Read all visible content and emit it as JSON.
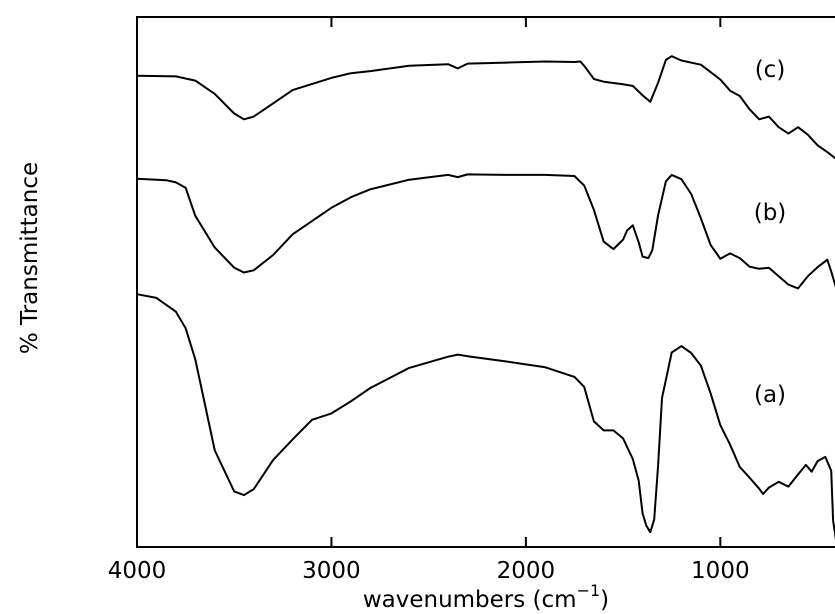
{
  "chart_data": {
    "type": "line",
    "xlabel": "wavenumbers (cm",
    "xlabel_superscript": "−1",
    "xlabel_close": ")",
    "ylabel": "% Transmittance",
    "xlim": [
      4000,
      400
    ],
    "x_reversed": true,
    "y_ticks_shown": false,
    "x_ticks": [
      {
        "value": 4000,
        "label": "4000"
      },
      {
        "value": 3000,
        "label": "3000"
      },
      {
        "value": 2000,
        "label": "2000"
      },
      {
        "value": 1000,
        "label": "1000"
      }
    ],
    "ylim": [
      0,
      1
    ],
    "grid": false,
    "series": [
      {
        "name": "(c)",
        "x": [
          4000,
          3800,
          3700,
          3600,
          3500,
          3450,
          3400,
          3300,
          3200,
          3000,
          2900,
          2800,
          2600,
          2400,
          2350,
          2300,
          2100,
          1900,
          1750,
          1720,
          1700,
          1650,
          1600,
          1500,
          1450,
          1400,
          1360,
          1320,
          1280,
          1250,
          1200,
          1100,
          1000,
          950,
          900,
          850,
          800,
          750,
          700,
          650,
          600,
          550,
          500,
          450,
          400
        ],
        "y": [
          0.889,
          0.888,
          0.88,
          0.855,
          0.818,
          0.807,
          0.812,
          0.837,
          0.862,
          0.885,
          0.894,
          0.898,
          0.908,
          0.911,
          0.903,
          0.912,
          0.914,
          0.916,
          0.915,
          0.916,
          0.908,
          0.883,
          0.878,
          0.873,
          0.87,
          0.852,
          0.84,
          0.876,
          0.919,
          0.926,
          0.918,
          0.91,
          0.882,
          0.861,
          0.851,
          0.826,
          0.807,
          0.812,
          0.792,
          0.78,
          0.792,
          0.778,
          0.758,
          0.745,
          0.731
        ]
      },
      {
        "name": "(b)",
        "x": [
          4000,
          3850,
          3800,
          3750,
          3700,
          3600,
          3500,
          3450,
          3400,
          3300,
          3200,
          3000,
          2900,
          2800,
          2600,
          2400,
          2350,
          2300,
          2100,
          1900,
          1750,
          1720,
          1700,
          1650,
          1600,
          1550,
          1500,
          1480,
          1450,
          1420,
          1400,
          1370,
          1350,
          1320,
          1280,
          1250,
          1200,
          1150,
          1100,
          1050,
          1000,
          950,
          900,
          850,
          800,
          750,
          700,
          650,
          600,
          550,
          500,
          450,
          430,
          400
        ],
        "y": [
          0.695,
          0.692,
          0.688,
          0.678,
          0.625,
          0.565,
          0.527,
          0.518,
          0.522,
          0.551,
          0.59,
          0.64,
          0.66,
          0.675,
          0.693,
          0.702,
          0.698,
          0.703,
          0.702,
          0.702,
          0.7,
          0.689,
          0.682,
          0.636,
          0.576,
          0.562,
          0.58,
          0.597,
          0.607,
          0.575,
          0.548,
          0.545,
          0.56,
          0.626,
          0.69,
          0.702,
          0.694,
          0.666,
          0.62,
          0.57,
          0.544,
          0.554,
          0.545,
          0.529,
          0.525,
          0.527,
          0.511,
          0.495,
          0.488,
          0.511,
          0.528,
          0.542,
          0.52,
          0.483
        ]
      },
      {
        "name": "(a)",
        "x": [
          4000,
          3900,
          3800,
          3750,
          3700,
          3600,
          3500,
          3450,
          3400,
          3300,
          3200,
          3100,
          3000,
          2900,
          2800,
          2600,
          2400,
          2350,
          2300,
          2100,
          1900,
          1750,
          1700,
          1650,
          1600,
          1550,
          1500,
          1450,
          1420,
          1400,
          1380,
          1360,
          1340,
          1320,
          1300,
          1250,
          1200,
          1150,
          1100,
          1050,
          1000,
          950,
          900,
          850,
          800,
          780,
          750,
          700,
          650,
          600,
          560,
          530,
          500,
          460,
          430,
          420,
          400
        ],
        "y": [
          0.477,
          0.47,
          0.444,
          0.413,
          0.354,
          0.182,
          0.105,
          0.098,
          0.109,
          0.164,
          0.203,
          0.24,
          0.252,
          0.275,
          0.3,
          0.338,
          0.359,
          0.363,
          0.36,
          0.35,
          0.339,
          0.321,
          0.302,
          0.237,
          0.22,
          0.22,
          0.205,
          0.166,
          0.125,
          0.063,
          0.04,
          0.028,
          0.052,
          0.154,
          0.281,
          0.367,
          0.379,
          0.366,
          0.342,
          0.29,
          0.23,
          0.193,
          0.151,
          0.131,
          0.11,
          0.1,
          0.112,
          0.123,
          0.114,
          0.137,
          0.155,
          0.142,
          0.162,
          0.17,
          0.144,
          0.05,
          0.0
        ]
      }
    ]
  }
}
